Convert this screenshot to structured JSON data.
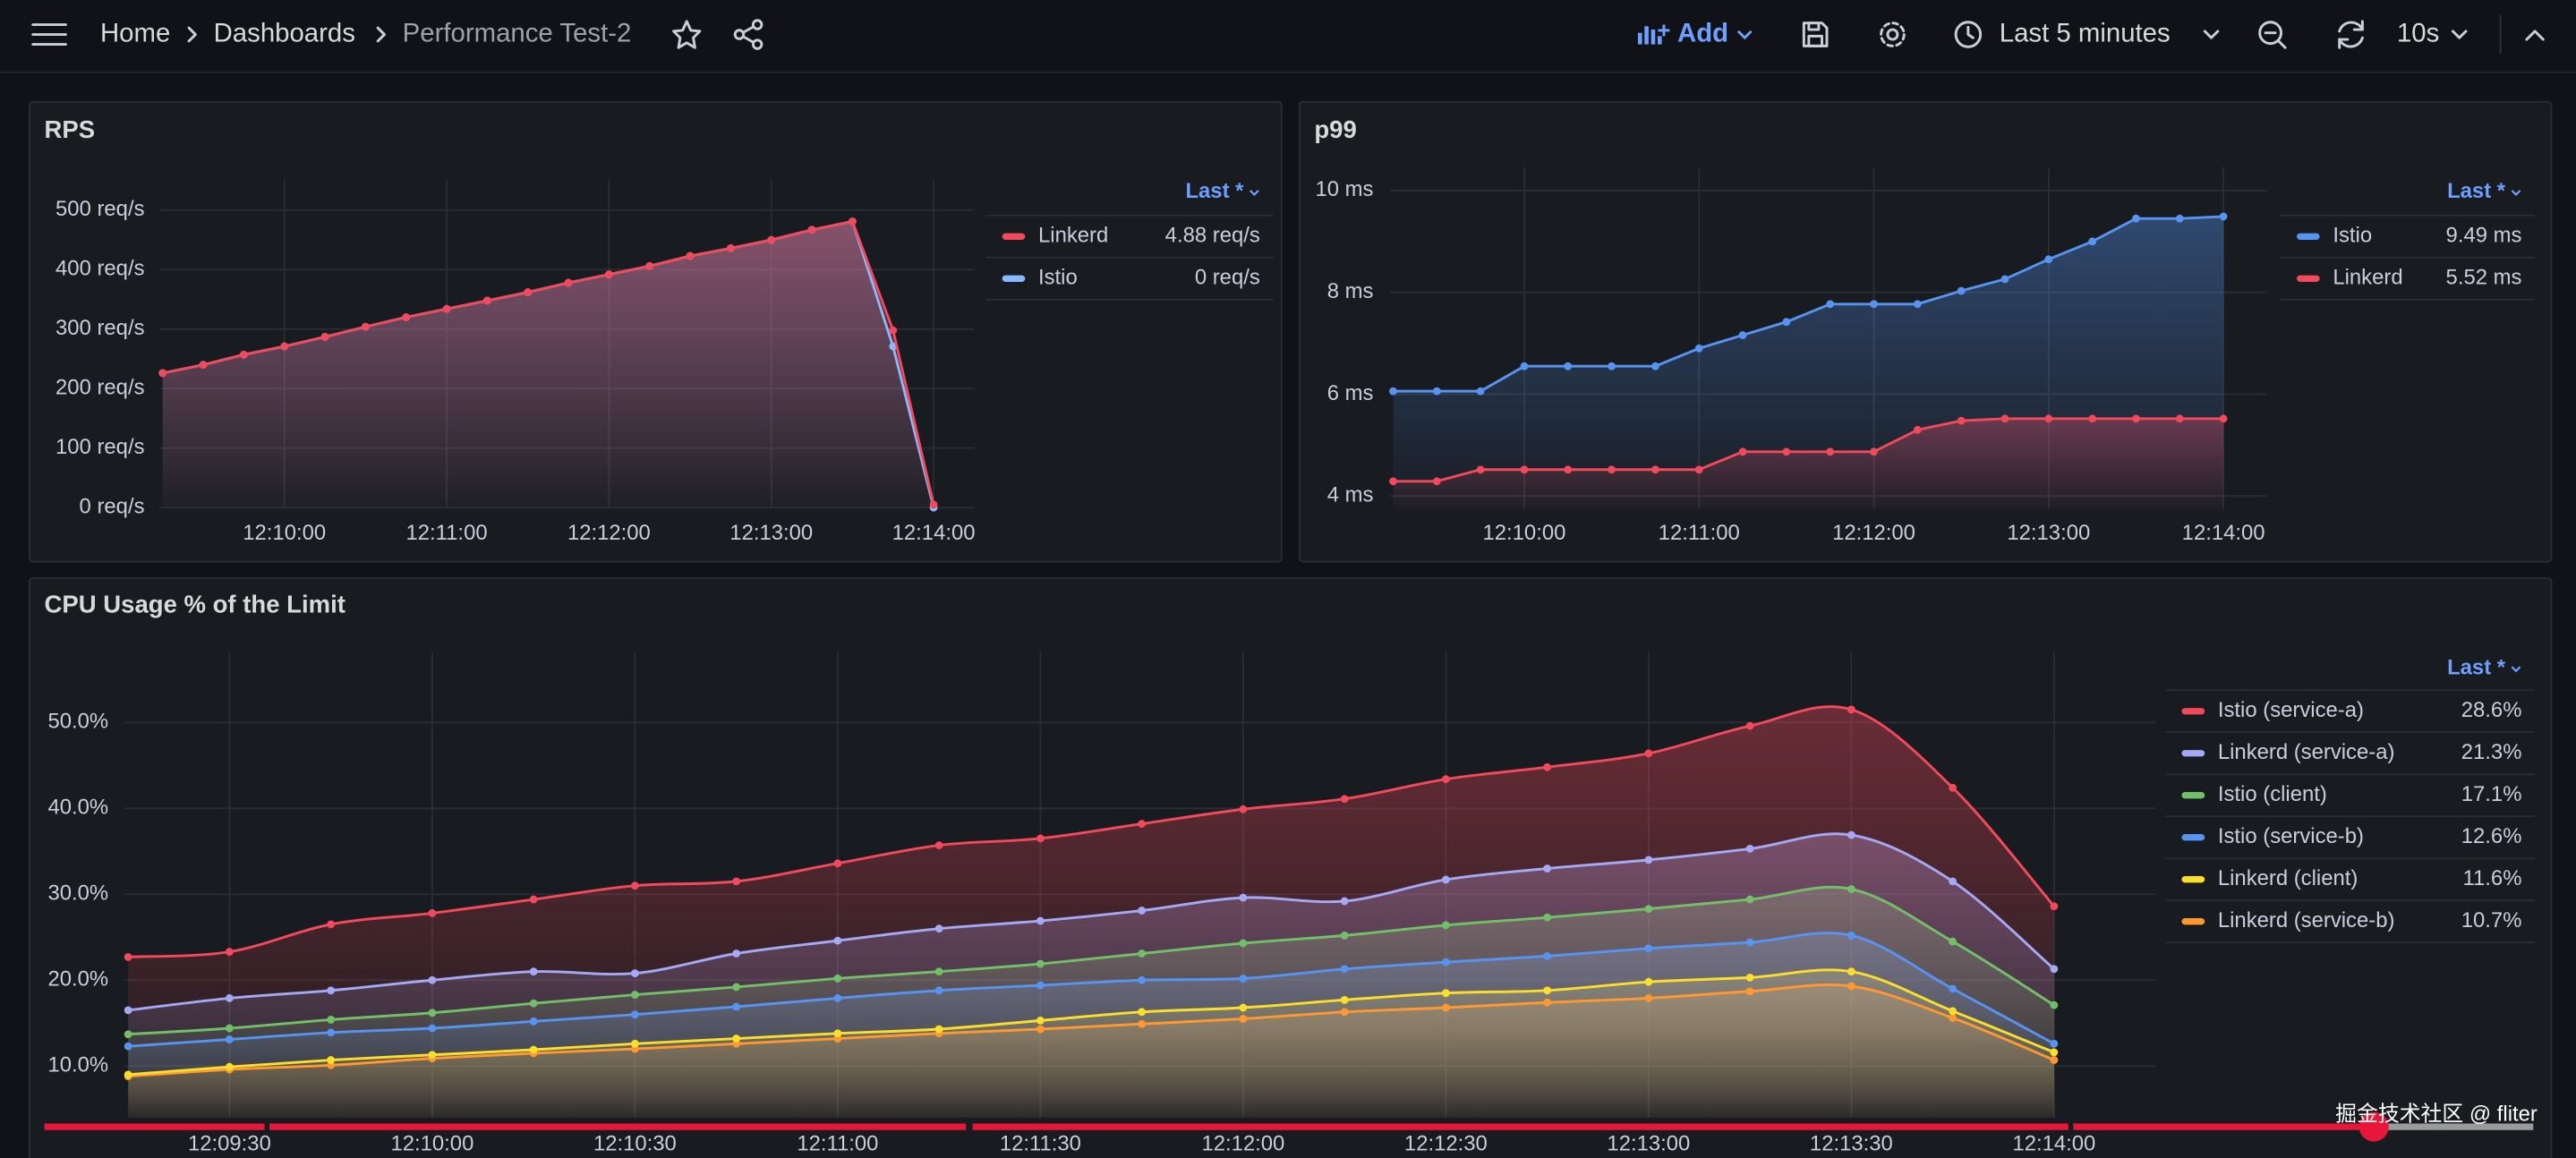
{
  "header": {
    "breadcrumbs": [
      "Home",
      "Dashboards",
      "Performance Test-2"
    ],
    "add": "Add",
    "time_range": "Last 5 minutes",
    "refresh": "10s"
  },
  "watermark": "掘金技术社区 @ fliter",
  "chart_data": [
    {
      "type": "line",
      "title": "RPS",
      "interpolation": "linear",
      "points": true,
      "grid": true,
      "legend": "right",
      "legend_title": "Last *",
      "x": [
        "12:09:15",
        "12:09:30",
        "12:09:45",
        "12:10:00",
        "12:10:15",
        "12:10:30",
        "12:10:45",
        "12:11:00",
        "12:11:15",
        "12:11:30",
        "12:11:45",
        "12:12:00",
        "12:12:15",
        "12:12:30",
        "12:12:45",
        "12:13:00",
        "12:13:15",
        "12:13:30",
        "12:13:45",
        "12:14:00"
      ],
      "xlim": [
        "12:09:15",
        "12:14:15"
      ],
      "xticks": [
        "12:10:00",
        "12:11:00",
        "12:12:00",
        "12:13:00",
        "12:14:00"
      ],
      "ylim": [
        0,
        530
      ],
      "yticks": [
        {
          "value": 0,
          "label": "0 req/s"
        },
        {
          "value": 100,
          "label": "100 req/s"
        },
        {
          "value": 200,
          "label": "200 req/s"
        },
        {
          "value": 300,
          "label": "300 req/s"
        },
        {
          "value": 400,
          "label": "400 req/s"
        },
        {
          "value": 500,
          "label": "500 req/s"
        }
      ],
      "series": [
        {
          "name": "Linkerd",
          "color": "#f2495c",
          "values": [
            226,
            240,
            257,
            271,
            287,
            304,
            320,
            334,
            348,
            362,
            378,
            392,
            406,
            423,
            436,
            450,
            467,
            481,
            298,
            4.88
          ],
          "value_labels": [
            null,
            null,
            null,
            null,
            null,
            null,
            null,
            null,
            null,
            null,
            null,
            null,
            null,
            null,
            null,
            null,
            null,
            null,
            null,
            "4.88 req/s"
          ]
        },
        {
          "name": "Istio",
          "color": "#8ab8ff",
          "values": [
            226,
            240,
            257,
            271,
            287,
            304,
            320,
            334,
            348,
            362,
            378,
            392,
            406,
            423,
            436,
            450,
            467,
            481,
            271,
            0
          ],
          "value_labels": [
            null,
            null,
            null,
            null,
            null,
            null,
            null,
            null,
            null,
            null,
            null,
            null,
            null,
            null,
            null,
            null,
            null,
            null,
            null,
            "0 req/s"
          ]
        }
      ]
    },
    {
      "type": "line",
      "title": "p99",
      "interpolation": "linear",
      "points": true,
      "grid": true,
      "legend": "right",
      "legend_title": "Last *",
      "x": [
        "12:09:15",
        "12:09:30",
        "12:09:45",
        "12:10:00",
        "12:10:15",
        "12:10:30",
        "12:10:45",
        "12:11:00",
        "12:11:15",
        "12:11:30",
        "12:11:45",
        "12:12:00",
        "12:12:15",
        "12:12:30",
        "12:12:45",
        "12:13:00",
        "12:13:15",
        "12:13:30",
        "12:13:45",
        "12:14:00"
      ],
      "xlim": [
        "12:09:15",
        "12:14:15"
      ],
      "xticks": [
        "12:10:00",
        "12:11:00",
        "12:12:00",
        "12:13:00",
        "12:14:00"
      ],
      "ylim": [
        3.75,
        10.2
      ],
      "yticks": [
        {
          "value": 4,
          "label": "4 ms"
        },
        {
          "value": 6,
          "label": "6 ms"
        },
        {
          "value": 8,
          "label": "8 ms"
        },
        {
          "value": 10,
          "label": "10 ms"
        }
      ],
      "series": [
        {
          "name": "Istio",
          "color": "#5794f2",
          "values": [
            6.06,
            6.06,
            6.06,
            6.55,
            6.55,
            6.55,
            6.55,
            6.9,
            7.16,
            7.42,
            7.77,
            7.77,
            7.77,
            8.03,
            8.26,
            8.65,
            9.0,
            9.45,
            9.45,
            9.49
          ],
          "value_labels": [
            null,
            null,
            null,
            null,
            null,
            null,
            null,
            null,
            null,
            null,
            null,
            null,
            null,
            null,
            null,
            null,
            null,
            null,
            null,
            "9.49 ms"
          ]
        },
        {
          "name": "Linkerd",
          "color": "#f2495c",
          "values": [
            4.29,
            4.29,
            4.52,
            4.52,
            4.52,
            4.52,
            4.52,
            4.52,
            4.87,
            4.87,
            4.87,
            4.87,
            5.3,
            5.48,
            5.52,
            5.52,
            5.52,
            5.52,
            5.52,
            5.52
          ],
          "value_labels": [
            null,
            null,
            null,
            null,
            null,
            null,
            null,
            null,
            null,
            null,
            null,
            null,
            null,
            null,
            null,
            null,
            null,
            null,
            null,
            "5.52 ms"
          ]
        }
      ]
    },
    {
      "type": "line",
      "title": "CPU Usage % of the Limit",
      "interpolation": "smooth",
      "points": true,
      "grid": true,
      "legend": "right",
      "legend_title": "Last *",
      "x": [
        "12:09:15",
        "12:09:30",
        "12:09:45",
        "12:10:00",
        "12:10:15",
        "12:10:30",
        "12:10:45",
        "12:11:00",
        "12:11:15",
        "12:11:30",
        "12:11:45",
        "12:12:00",
        "12:12:15",
        "12:12:30",
        "12:12:45",
        "12:13:00",
        "12:13:15",
        "12:13:30",
        "12:13:45",
        "12:14:00"
      ],
      "xlim": [
        "12:09:15",
        "12:14:15"
      ],
      "xticks": [
        "12:09:30",
        "12:10:00",
        "12:10:30",
        "12:11:00",
        "12:11:30",
        "12:12:00",
        "12:12:30",
        "12:13:00",
        "12:13:30",
        "12:14:00"
      ],
      "ylim": [
        4,
        56.7
      ],
      "yticks": [
        {
          "value": 10,
          "label": "10.0%"
        },
        {
          "value": 20,
          "label": "20.0%"
        },
        {
          "value": 30,
          "label": "30.0%"
        },
        {
          "value": 40,
          "label": "40.0%"
        },
        {
          "value": 50,
          "label": "50.0%"
        }
      ],
      "series": [
        {
          "name": "Istio (service-a)",
          "color": "#f2495c",
          "values": [
            22.7,
            23.3,
            26.5,
            27.8,
            29.4,
            31.0,
            31.5,
            33.6,
            35.7,
            36.5,
            38.2,
            39.9,
            41.1,
            43.4,
            44.8,
            46.4,
            49.6,
            51.5,
            42.4,
            28.6
          ],
          "value_labels": [
            null,
            null,
            null,
            null,
            null,
            null,
            null,
            null,
            null,
            null,
            null,
            null,
            null,
            null,
            null,
            null,
            null,
            null,
            null,
            "28.6%"
          ]
        },
        {
          "name": "Linkerd (service-a)",
          "color": "#a5a8f2",
          "values": [
            16.5,
            17.9,
            18.8,
            20.0,
            21.0,
            20.8,
            23.1,
            24.6,
            26.0,
            26.9,
            28.1,
            29.6,
            29.2,
            31.7,
            33.0,
            34.0,
            35.3,
            36.9,
            31.5,
            21.3
          ],
          "value_labels": [
            null,
            null,
            null,
            null,
            null,
            null,
            null,
            null,
            null,
            null,
            null,
            null,
            null,
            null,
            null,
            null,
            null,
            null,
            null,
            "21.3%"
          ]
        },
        {
          "name": "Istio (client)",
          "color": "#73bf69",
          "values": [
            13.7,
            14.4,
            15.4,
            16.2,
            17.3,
            18.3,
            19.2,
            20.2,
            21.0,
            21.9,
            23.1,
            24.3,
            25.2,
            26.4,
            27.3,
            28.3,
            29.4,
            30.6,
            24.5,
            17.1
          ],
          "value_labels": [
            null,
            null,
            null,
            null,
            null,
            null,
            null,
            null,
            null,
            null,
            null,
            null,
            null,
            null,
            null,
            null,
            null,
            null,
            null,
            "17.1%"
          ]
        },
        {
          "name": "Istio (service-b)",
          "color": "#5794f2",
          "values": [
            12.3,
            13.1,
            13.9,
            14.4,
            15.2,
            16.0,
            16.9,
            17.9,
            18.8,
            19.4,
            20.0,
            20.2,
            21.3,
            22.1,
            22.8,
            23.7,
            24.4,
            25.2,
            19.0,
            12.6
          ],
          "value_labels": [
            null,
            null,
            null,
            null,
            null,
            null,
            null,
            null,
            null,
            null,
            null,
            null,
            null,
            null,
            null,
            null,
            null,
            null,
            null,
            "12.6%"
          ]
        },
        {
          "name": "Linkerd (client)",
          "color": "#fade2a",
          "values": [
            9.0,
            9.9,
            10.7,
            11.3,
            11.9,
            12.6,
            13.2,
            13.8,
            14.3,
            15.3,
            16.3,
            16.8,
            17.7,
            18.5,
            18.8,
            19.8,
            20.3,
            21.0,
            16.4,
            11.6
          ],
          "value_labels": [
            null,
            null,
            null,
            null,
            null,
            null,
            null,
            null,
            null,
            null,
            null,
            null,
            null,
            null,
            null,
            null,
            null,
            null,
            null,
            "11.6%"
          ]
        },
        {
          "name": "Linkerd (service-b)",
          "color": "#ff9830",
          "values": [
            8.8,
            9.6,
            10.1,
            10.9,
            11.5,
            12.0,
            12.6,
            13.2,
            13.8,
            14.3,
            14.9,
            15.5,
            16.3,
            16.8,
            17.4,
            17.9,
            18.7,
            19.3,
            15.6,
            10.7
          ],
          "value_labels": [
            null,
            null,
            null,
            null,
            null,
            null,
            null,
            null,
            null,
            null,
            null,
            null,
            null,
            null,
            null,
            null,
            null,
            null,
            null,
            "10.7%"
          ]
        }
      ]
    }
  ]
}
